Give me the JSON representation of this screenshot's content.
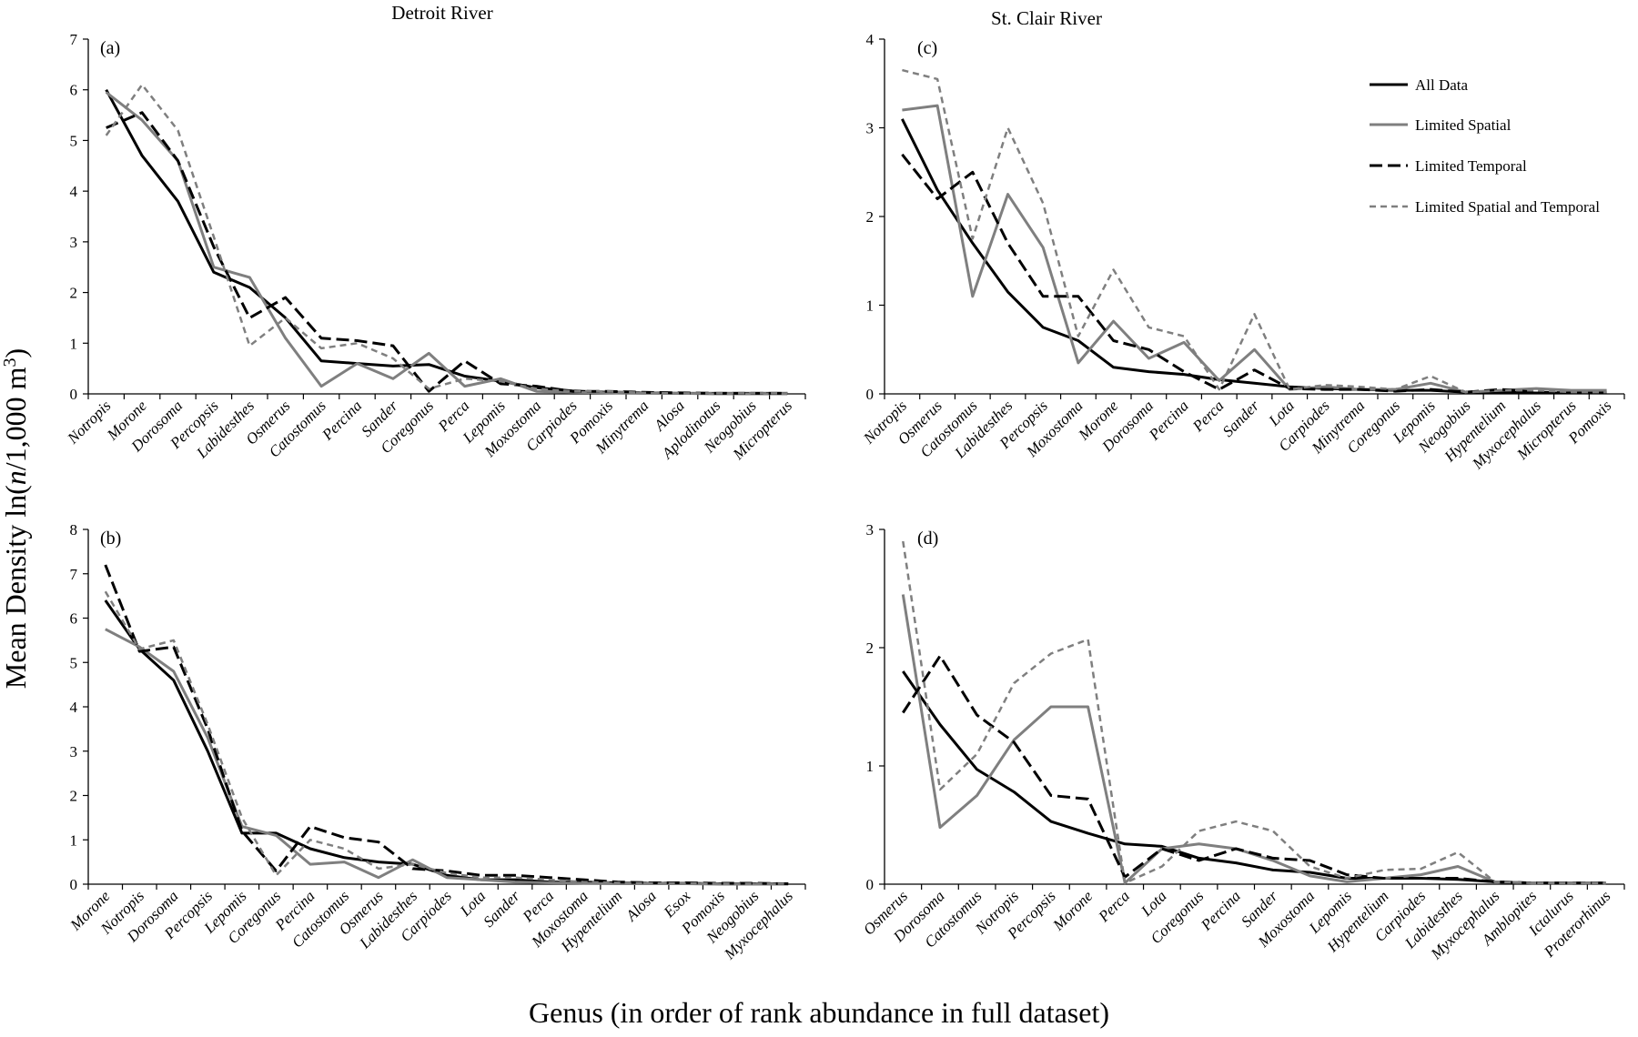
{
  "figure": {
    "y_label": "Mean Density ln(n/1,000 m³)",
    "x_label": "Genus (in order of rank abundance in full dataset)",
    "river_titles": [
      "Detroit River",
      "St. Clair River"
    ]
  },
  "legend": {
    "placement": "top-right of panel (c)",
    "entries": [
      {
        "label": "All Data",
        "color": "#000000",
        "dash": "solid"
      },
      {
        "label": "Limited Spatial",
        "color": "#7f7f7f",
        "dash": "solid"
      },
      {
        "label": "Limited Temporal",
        "color": "#000000",
        "dash": "long-dash"
      },
      {
        "label": "Limited Spatial and Temporal",
        "color": "#7f7f7f",
        "dash": "short-dash"
      }
    ]
  },
  "chart_data": [
    {
      "type": "line",
      "panel": "(a)",
      "title": "Detroit River",
      "ylim": [
        0,
        7
      ],
      "yticks": [
        0,
        1,
        2,
        3,
        4,
        5,
        6,
        7
      ],
      "categories": [
        "Notropis",
        "Morone",
        "Dorosoma",
        "Percopsis",
        "Labidesthes",
        "Osmerus",
        "Catostomus",
        "Percina",
        "Sander",
        "Coregonus",
        "Perca",
        "Lepomis",
        "Moxostoma",
        "Carpiodes",
        "Pomoxis",
        "Minytrema",
        "Alosa",
        "Aplodinotus",
        "Neogobius",
        "Micropterus"
      ],
      "series": [
        {
          "name": "All Data",
          "values": [
            6.0,
            4.7,
            3.8,
            2.4,
            2.1,
            1.5,
            0.65,
            0.6,
            0.55,
            0.58,
            0.35,
            0.25,
            0.12,
            0.06,
            0.03,
            0.02,
            0.01,
            0.01,
            0.01,
            0.01
          ]
        },
        {
          "name": "Limited Spatial",
          "values": [
            5.95,
            5.4,
            4.6,
            2.5,
            2.3,
            1.1,
            0.15,
            0.6,
            0.3,
            0.8,
            0.15,
            0.3,
            0.05,
            0.03,
            0.02,
            0.01,
            0.01,
            0.0,
            0.0,
            0.0
          ]
        },
        {
          "name": "Limited Temporal",
          "values": [
            5.25,
            5.55,
            4.6,
            2.9,
            1.5,
            1.9,
            1.1,
            1.05,
            0.95,
            0.05,
            0.65,
            0.2,
            0.15,
            0.05,
            0.05,
            0.03,
            0.02,
            0.01,
            0.01,
            0.01
          ]
        },
        {
          "name": "Limited Spatial and Temporal",
          "values": [
            5.1,
            6.1,
            5.2,
            3.1,
            0.95,
            1.5,
            0.9,
            1.0,
            0.7,
            0.1,
            0.3,
            0.25,
            0.1,
            0.05,
            0.05,
            0.02,
            0.01,
            0.01,
            0.01,
            0.01
          ]
        }
      ]
    },
    {
      "type": "line",
      "panel": "(b)",
      "ylim": [
        0,
        8
      ],
      "yticks": [
        0,
        1,
        2,
        3,
        4,
        5,
        6,
        7,
        8
      ],
      "categories": [
        "Morone",
        "Notropis",
        "Dorosoma",
        "Percopsis",
        "Lepomis",
        "Coregonus",
        "Percina",
        "Catostomus",
        "Osmerus",
        "Labidesthes",
        "Carpiodes",
        "Lota",
        "Sander",
        "Perca",
        "Moxostoma",
        "Hypentelium",
        "Alosa",
        "Esox",
        "Pomoxis",
        "Neogobius",
        "Myxocephalus"
      ],
      "series": [
        {
          "name": "All Data",
          "values": [
            6.4,
            5.3,
            4.6,
            3.0,
            1.15,
            1.15,
            0.8,
            0.6,
            0.5,
            0.45,
            0.2,
            0.1,
            0.1,
            0.05,
            0.05,
            0.03,
            0.02,
            0.02,
            0.01,
            0.01,
            0.01
          ]
        },
        {
          "name": "Limited Spatial",
          "values": [
            5.75,
            5.35,
            4.8,
            3.3,
            1.3,
            1.1,
            0.45,
            0.5,
            0.15,
            0.55,
            0.15,
            0.1,
            0.05,
            0.03,
            0.02,
            0.01,
            0.01,
            0.01,
            0.0,
            0.0,
            0.0
          ]
        },
        {
          "name": "Limited Temporal",
          "values": [
            7.2,
            5.25,
            5.35,
            3.5,
            1.2,
            0.3,
            1.3,
            1.05,
            0.95,
            0.35,
            0.3,
            0.2,
            0.2,
            0.15,
            0.1,
            0.05,
            0.03,
            0.03,
            0.02,
            0.02,
            0.01
          ]
        },
        {
          "name": "Limited Spatial and Temporal",
          "values": [
            6.6,
            5.3,
            5.5,
            3.6,
            1.5,
            0.2,
            1.0,
            0.8,
            0.35,
            0.45,
            0.25,
            0.15,
            0.15,
            0.1,
            0.05,
            0.03,
            0.02,
            0.02,
            0.01,
            0.01,
            0.01
          ]
        }
      ]
    },
    {
      "type": "line",
      "panel": "(c)",
      "title": "St. Clair River",
      "ylim": [
        0,
        4
      ],
      "yticks": [
        0,
        1,
        2,
        3,
        4
      ],
      "categories": [
        "Notropis",
        "Osmerus",
        "Catostomus",
        "Labidesthes",
        "Percopsis",
        "Moxostoma",
        "Morone",
        "Dorosoma",
        "Percina",
        "Perca",
        "Sander",
        "Lota",
        "Carpiodes",
        "Minytrema",
        "Coregonus",
        "Lepomis",
        "Neogobius",
        "Hypentelium",
        "Myxocephalus",
        "Micropterus",
        "Pomoxis"
      ],
      "series": [
        {
          "name": "All Data",
          "values": [
            3.1,
            2.3,
            1.7,
            1.15,
            0.75,
            0.6,
            0.3,
            0.25,
            0.22,
            0.16,
            0.12,
            0.08,
            0.06,
            0.05,
            0.04,
            0.04,
            0.02,
            0.02,
            0.01,
            0.01,
            0.01
          ]
        },
        {
          "name": "Limited Spatial",
          "values": [
            3.2,
            3.25,
            1.1,
            2.25,
            1.65,
            0.35,
            0.82,
            0.4,
            0.58,
            0.15,
            0.5,
            0.05,
            0.08,
            0.05,
            0.05,
            0.12,
            0.02,
            0.04,
            0.06,
            0.04,
            0.04
          ]
        },
        {
          "name": "Limited Temporal",
          "values": [
            2.7,
            2.2,
            2.5,
            1.7,
            1.1,
            1.1,
            0.6,
            0.5,
            0.25,
            0.05,
            0.27,
            0.06,
            0.05,
            0.05,
            0.03,
            0.05,
            0.02,
            0.05,
            0.02,
            0.01,
            0.01
          ]
        },
        {
          "name": "Limited Spatial and Temporal",
          "values": [
            3.65,
            3.55,
            1.75,
            3.0,
            2.15,
            0.65,
            1.4,
            0.75,
            0.65,
            0.05,
            0.9,
            0.05,
            0.1,
            0.08,
            0.05,
            0.2,
            0.02,
            0.04,
            0.04,
            0.02,
            0.02
          ]
        }
      ]
    },
    {
      "type": "line",
      "panel": "(d)",
      "ylim": [
        0,
        3
      ],
      "yticks": [
        0,
        1,
        2,
        3
      ],
      "categories": [
        "Osmerus",
        "Dorosoma",
        "Catostomus",
        "Notropis",
        "Percopsis",
        "Morone",
        "Perca",
        "Lota",
        "Coregonus",
        "Percina",
        "Sander",
        "Moxostoma",
        "Lepomis",
        "Hypentelium",
        "Carpiodes",
        "Labidesthes",
        "Myxocephalus",
        "Amblopites",
        "Ictalurus",
        "Proterorhinus"
      ],
      "series": [
        {
          "name": "All Data",
          "values": [
            1.8,
            1.35,
            0.97,
            0.78,
            0.53,
            0.43,
            0.34,
            0.32,
            0.22,
            0.18,
            0.12,
            0.1,
            0.05,
            0.05,
            0.05,
            0.04,
            0.02,
            0.01,
            0.01,
            0.01
          ]
        },
        {
          "name": "Limited Spatial",
          "values": [
            2.45,
            0.48,
            0.75,
            1.22,
            1.5,
            1.5,
            0.01,
            0.3,
            0.34,
            0.3,
            0.2,
            0.07,
            0.02,
            0.05,
            0.08,
            0.15,
            0.02,
            0.01,
            0.01,
            0.01
          ]
        },
        {
          "name": "Limited Temporal",
          "values": [
            1.45,
            1.93,
            1.43,
            1.2,
            0.75,
            0.72,
            0.06,
            0.3,
            0.2,
            0.3,
            0.22,
            0.2,
            0.08,
            0.05,
            0.05,
            0.05,
            0.02,
            0.01,
            0.01,
            0.01
          ]
        },
        {
          "name": "Limited Spatial and Temporal",
          "values": [
            2.9,
            0.8,
            1.1,
            1.7,
            1.95,
            2.07,
            0.01,
            0.15,
            0.45,
            0.53,
            0.45,
            0.15,
            0.05,
            0.12,
            0.13,
            0.27,
            0.02,
            0.01,
            0.01,
            0.01
          ]
        }
      ]
    }
  ]
}
